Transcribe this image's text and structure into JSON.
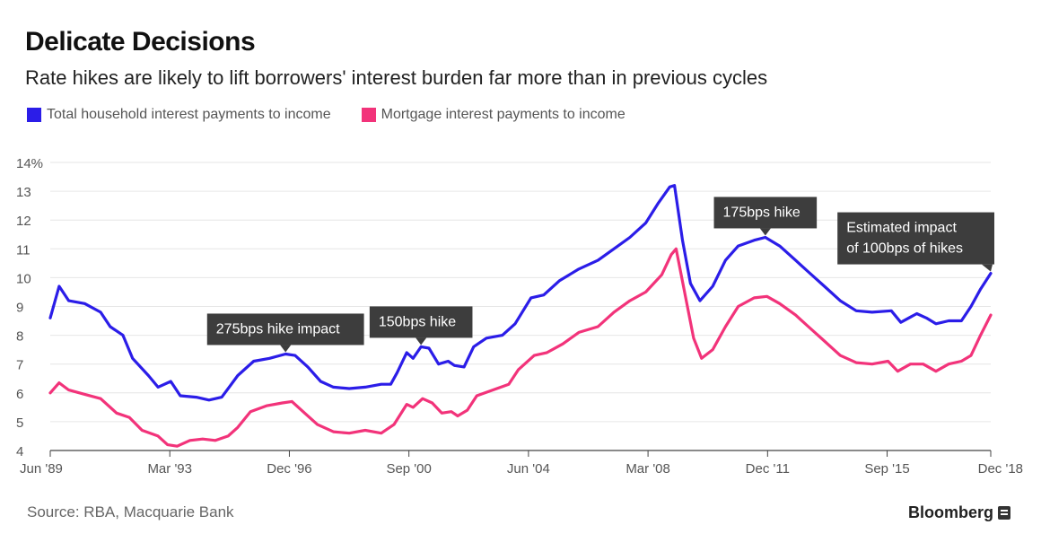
{
  "header": {
    "title": "Delicate Decisions",
    "subtitle": "Rate hikes are likely to lift borrowers' interest burden far more than in previous cycles"
  },
  "footer": {
    "source": "Source: RBA, Macquarie Bank",
    "brand": "Bloomberg"
  },
  "chart_data": {
    "type": "line",
    "xlim": [
      1989.42,
      2018.92
    ],
    "ylim": [
      4,
      14
    ],
    "y_ticks": [
      4,
      5,
      6,
      7,
      8,
      9,
      10,
      11,
      12,
      13,
      14
    ],
    "y_tick_labels": [
      "4",
      "5",
      "6",
      "7",
      "8",
      "9",
      "10",
      "11",
      "12",
      "13",
      "14%"
    ],
    "x_ticks": [
      1989.42,
      1993.17,
      1996.92,
      2000.67,
      2004.42,
      2008.17,
      2011.92,
      2015.67,
      2018.92
    ],
    "x_tick_labels": [
      "Jun '89",
      "Mar '93",
      "Dec '96",
      "Sep '00",
      "Jun '04",
      "Mar '08",
      "Dec '11",
      "Sep '15",
      "Dec '18"
    ],
    "grid": true,
    "legend_position": "top-left",
    "colors": {
      "total": "#2b1de8",
      "mortgage": "#f2337a",
      "annotation_bg": "#3d3d3d",
      "grid": "#e6e6e6"
    },
    "series": [
      {
        "name": "Total household interest payments to income",
        "color": "#2b1de8",
        "points": [
          [
            1989.42,
            8.6
          ],
          [
            1989.7,
            9.7
          ],
          [
            1990.0,
            9.2
          ],
          [
            1990.5,
            9.1
          ],
          [
            1991.0,
            8.8
          ],
          [
            1991.3,
            8.3
          ],
          [
            1991.7,
            8.0
          ],
          [
            1992.0,
            7.2
          ],
          [
            1992.5,
            6.6
          ],
          [
            1992.8,
            6.2
          ],
          [
            1993.2,
            6.4
          ],
          [
            1993.5,
            5.9
          ],
          [
            1994.0,
            5.85
          ],
          [
            1994.4,
            5.75
          ],
          [
            1994.8,
            5.85
          ],
          [
            1995.3,
            6.6
          ],
          [
            1995.8,
            7.1
          ],
          [
            1996.3,
            7.2
          ],
          [
            1996.8,
            7.35
          ],
          [
            1997.1,
            7.3
          ],
          [
            1997.5,
            6.9
          ],
          [
            1997.9,
            6.4
          ],
          [
            1998.3,
            6.2
          ],
          [
            1998.8,
            6.15
          ],
          [
            1999.3,
            6.2
          ],
          [
            1999.8,
            6.3
          ],
          [
            2000.1,
            6.3
          ],
          [
            2000.3,
            6.7
          ],
          [
            2000.6,
            7.4
          ],
          [
            2000.8,
            7.2
          ],
          [
            2001.05,
            7.6
          ],
          [
            2001.3,
            7.55
          ],
          [
            2001.6,
            7.0
          ],
          [
            2001.9,
            7.1
          ],
          [
            2002.1,
            6.95
          ],
          [
            2002.4,
            6.9
          ],
          [
            2002.7,
            7.6
          ],
          [
            2003.1,
            7.9
          ],
          [
            2003.6,
            8.0
          ],
          [
            2004.0,
            8.4
          ],
          [
            2004.5,
            9.3
          ],
          [
            2004.9,
            9.4
          ],
          [
            2005.4,
            9.9
          ],
          [
            2006.0,
            10.3
          ],
          [
            2006.6,
            10.6
          ],
          [
            2007.1,
            11.0
          ],
          [
            2007.6,
            11.4
          ],
          [
            2008.1,
            11.9
          ],
          [
            2008.5,
            12.6
          ],
          [
            2008.85,
            13.15
          ],
          [
            2009.0,
            13.2
          ],
          [
            2009.25,
            11.3
          ],
          [
            2009.5,
            9.8
          ],
          [
            2009.8,
            9.2
          ],
          [
            2010.2,
            9.7
          ],
          [
            2010.6,
            10.6
          ],
          [
            2011.0,
            11.1
          ],
          [
            2011.5,
            11.3
          ],
          [
            2011.85,
            11.4
          ],
          [
            2012.3,
            11.1
          ],
          [
            2012.8,
            10.6
          ],
          [
            2013.2,
            10.2
          ],
          [
            2013.7,
            9.7
          ],
          [
            2014.2,
            9.2
          ],
          [
            2014.7,
            8.85
          ],
          [
            2015.2,
            8.8
          ],
          [
            2015.8,
            8.85
          ],
          [
            2016.1,
            8.45
          ],
          [
            2016.6,
            8.75
          ],
          [
            2016.9,
            8.6
          ],
          [
            2017.2,
            8.4
          ],
          [
            2017.6,
            8.5
          ],
          [
            2018.0,
            8.5
          ],
          [
            2018.3,
            9.0
          ],
          [
            2018.6,
            9.6
          ],
          [
            2018.92,
            10.15
          ]
        ]
      },
      {
        "name": "Mortgage interest payments to income",
        "color": "#f2337a",
        "points": [
          [
            1989.42,
            6.0
          ],
          [
            1989.7,
            6.35
          ],
          [
            1990.0,
            6.1
          ],
          [
            1990.5,
            5.95
          ],
          [
            1991.0,
            5.8
          ],
          [
            1991.5,
            5.3
          ],
          [
            1991.9,
            5.15
          ],
          [
            1992.3,
            4.7
          ],
          [
            1992.8,
            4.5
          ],
          [
            1993.1,
            4.2
          ],
          [
            1993.4,
            4.15
          ],
          [
            1993.8,
            4.35
          ],
          [
            1994.2,
            4.4
          ],
          [
            1994.6,
            4.35
          ],
          [
            1995.0,
            4.5
          ],
          [
            1995.3,
            4.8
          ],
          [
            1995.7,
            5.35
          ],
          [
            1996.2,
            5.55
          ],
          [
            1996.7,
            5.65
          ],
          [
            1997.0,
            5.7
          ],
          [
            1997.4,
            5.3
          ],
          [
            1997.8,
            4.9
          ],
          [
            1998.3,
            4.65
          ],
          [
            1998.8,
            4.6
          ],
          [
            1999.3,
            4.7
          ],
          [
            1999.8,
            4.6
          ],
          [
            2000.2,
            4.9
          ],
          [
            2000.6,
            5.6
          ],
          [
            2000.8,
            5.5
          ],
          [
            2001.1,
            5.8
          ],
          [
            2001.4,
            5.65
          ],
          [
            2001.7,
            5.3
          ],
          [
            2002.0,
            5.35
          ],
          [
            2002.2,
            5.2
          ],
          [
            2002.5,
            5.4
          ],
          [
            2002.8,
            5.9
          ],
          [
            2003.3,
            6.1
          ],
          [
            2003.8,
            6.3
          ],
          [
            2004.1,
            6.8
          ],
          [
            2004.6,
            7.3
          ],
          [
            2005.0,
            7.4
          ],
          [
            2005.5,
            7.7
          ],
          [
            2006.0,
            8.1
          ],
          [
            2006.6,
            8.3
          ],
          [
            2007.1,
            8.8
          ],
          [
            2007.6,
            9.2
          ],
          [
            2008.1,
            9.5
          ],
          [
            2008.6,
            10.1
          ],
          [
            2008.9,
            10.8
          ],
          [
            2009.05,
            11.0
          ],
          [
            2009.3,
            9.6
          ],
          [
            2009.6,
            7.9
          ],
          [
            2009.85,
            7.2
          ],
          [
            2010.2,
            7.5
          ],
          [
            2010.6,
            8.3
          ],
          [
            2011.0,
            9.0
          ],
          [
            2011.5,
            9.3
          ],
          [
            2011.9,
            9.35
          ],
          [
            2012.3,
            9.1
          ],
          [
            2012.8,
            8.7
          ],
          [
            2013.2,
            8.3
          ],
          [
            2013.7,
            7.8
          ],
          [
            2014.2,
            7.3
          ],
          [
            2014.7,
            7.05
          ],
          [
            2015.2,
            7.0
          ],
          [
            2015.7,
            7.1
          ],
          [
            2016.0,
            6.75
          ],
          [
            2016.4,
            7.0
          ],
          [
            2016.8,
            7.0
          ],
          [
            2017.2,
            6.75
          ],
          [
            2017.6,
            7.0
          ],
          [
            2018.0,
            7.1
          ],
          [
            2018.3,
            7.3
          ],
          [
            2018.6,
            8.0
          ],
          [
            2018.92,
            8.7
          ]
        ]
      }
    ],
    "annotations": [
      {
        "text": "275bps hike impact",
        "x": 1996.8,
        "y": 7.35
      },
      {
        "text": "150bps hike",
        "x": 2001.05,
        "y": 7.6
      },
      {
        "text": "175bps hike",
        "x": 2011.85,
        "y": 11.4
      },
      {
        "lines": [
          "Estimated impact",
          "of 100bps of hikes"
        ],
        "x": 2018.92,
        "y": 10.15
      }
    ]
  }
}
